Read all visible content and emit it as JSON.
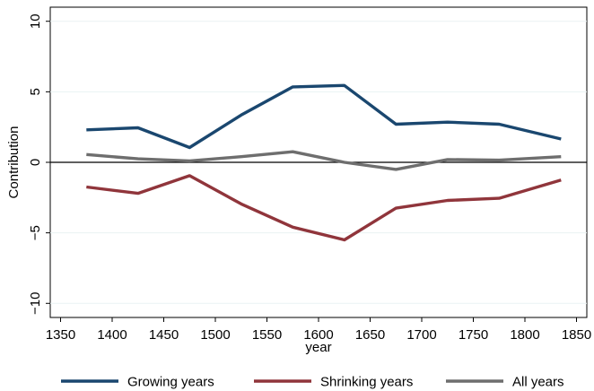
{
  "chart_data": {
    "type": "line",
    "title": "",
    "xlabel": "year",
    "ylabel": "Contribution",
    "xlim": [
      1340,
      1860
    ],
    "ylim": [
      -11,
      11
    ],
    "x_ticks": [
      1350,
      1400,
      1450,
      1500,
      1550,
      1600,
      1650,
      1700,
      1750,
      1800,
      1850
    ],
    "y_ticks": [
      -10,
      -5,
      0,
      5,
      10
    ],
    "grid": true,
    "zero_line": true,
    "legend_position": "bottom",
    "x": [
      1375,
      1425,
      1475,
      1525,
      1575,
      1625,
      1675,
      1725,
      1775,
      1835
    ],
    "series": [
      {
        "name": "Growing years",
        "color": "#1a476f",
        "values": [
          2.3,
          2.45,
          1.05,
          3.35,
          5.35,
          5.45,
          2.7,
          2.85,
          2.7,
          1.65
        ]
      },
      {
        "name": "Shrinking years",
        "color": "#90353b",
        "values": [
          -1.75,
          -2.2,
          -0.95,
          -2.95,
          -4.6,
          -5.5,
          -3.25,
          -2.7,
          -2.55,
          -1.25
        ]
      },
      {
        "name": "All years",
        "color": "#6e6e6e",
        "values": [
          0.55,
          0.25,
          0.1,
          0.4,
          0.75,
          0.0,
          -0.5,
          0.2,
          0.15,
          0.4
        ]
      }
    ]
  }
}
